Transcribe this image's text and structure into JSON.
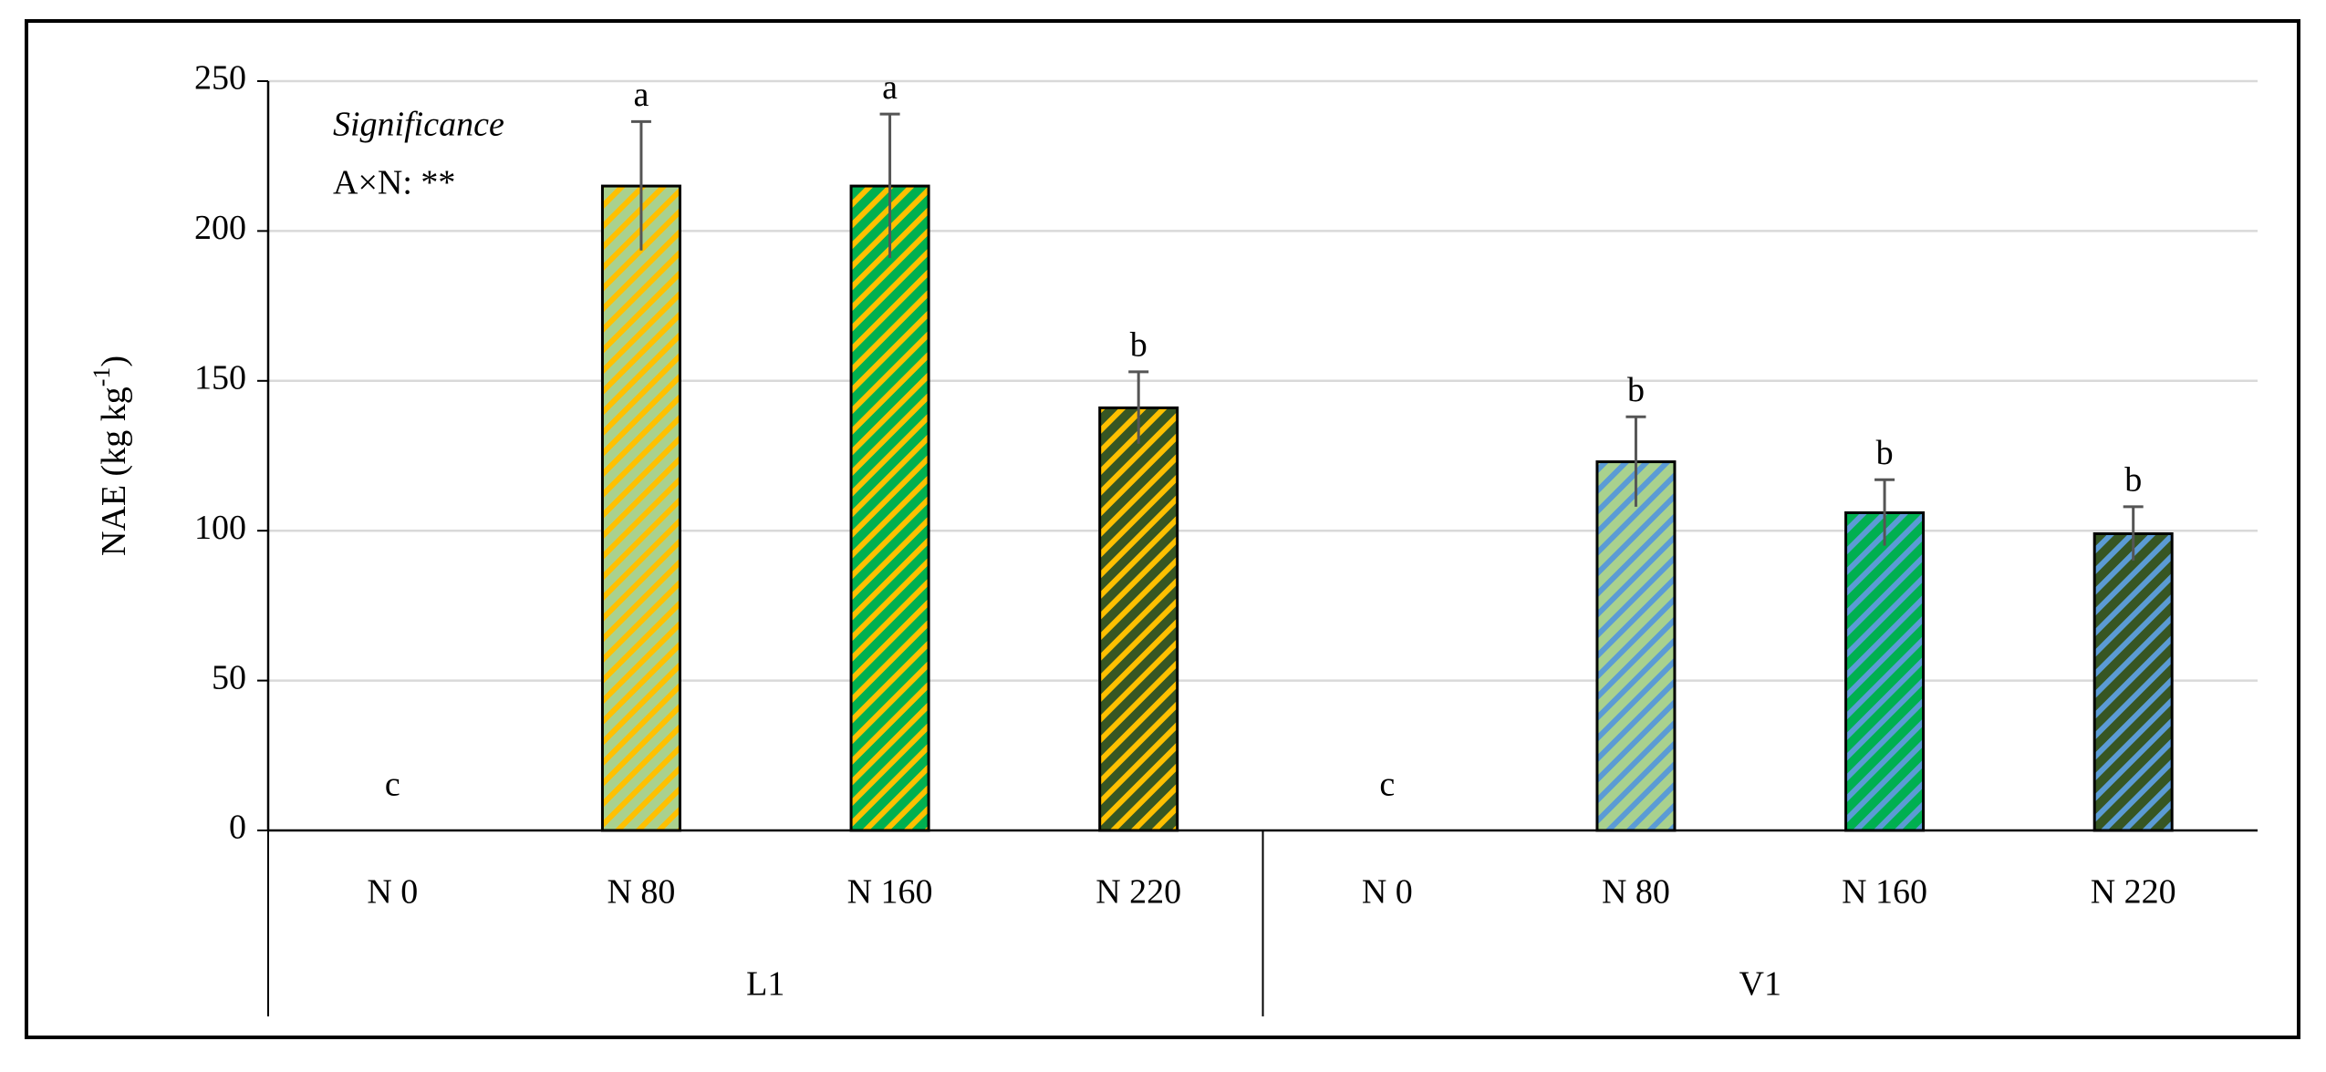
{
  "chart_data": {
    "type": "bar",
    "ylabel": "NAE (kg kg",
    "ylabel_sup": "-1",
    "ylabel_end": ")",
    "annotation_title": "Significance",
    "annotation_text": "A×N: **",
    "ylim": [
      0,
      250
    ],
    "yticks": [
      0,
      50,
      100,
      150,
      200,
      250
    ],
    "grid": true,
    "fill_colors": [
      "#a9d18e",
      "#a9d18e",
      "#00b050",
      "#375623"
    ],
    "groups": [
      {
        "label": "L1",
        "stripe_color": "#ffc000",
        "categories": [
          "N 0",
          "N 80",
          "N 160",
          "N 220"
        ],
        "values": [
          0,
          215,
          215,
          141
        ],
        "errors": [
          null,
          21.5,
          24,
          12
        ],
        "letters": [
          "c",
          "a",
          "a",
          "b"
        ]
      },
      {
        "label": "V1",
        "stripe_color": "#5b9bd5",
        "categories": [
          "N 0",
          "N 80",
          "N 160",
          "N 220"
        ],
        "values": [
          0,
          123,
          106,
          99
        ],
        "errors": [
          null,
          15,
          11,
          9
        ],
        "letters": [
          "c",
          "b",
          "b",
          "b"
        ]
      }
    ]
  }
}
